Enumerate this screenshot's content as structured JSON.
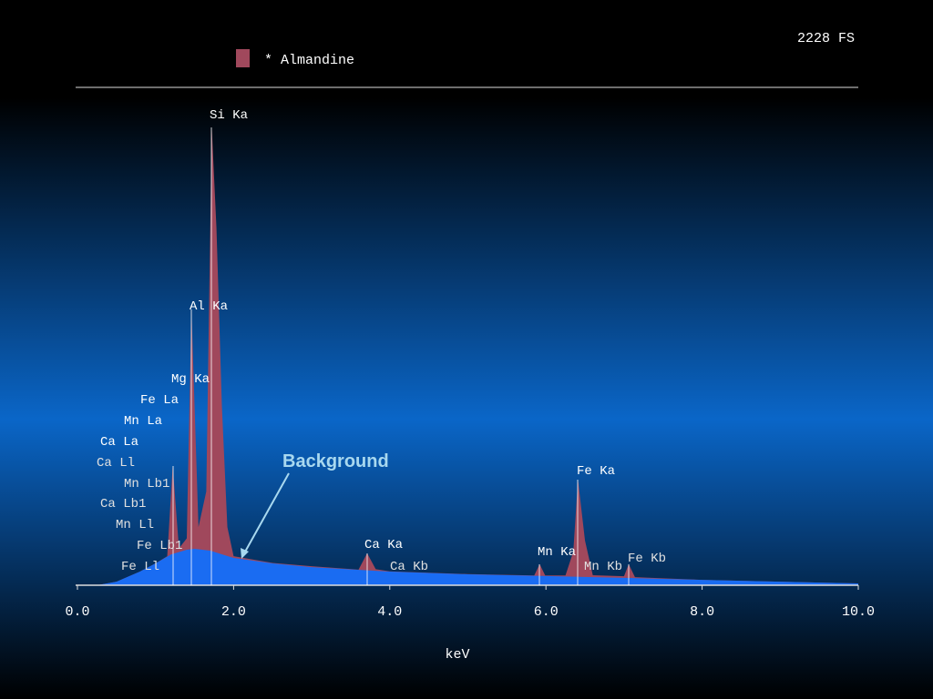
{
  "chart_data": {
    "type": "area",
    "full_scale_label": "2228 FS",
    "xlabel": "keV",
    "xlim": [
      0,
      10
    ],
    "xticks": [
      {
        "value": 0,
        "label": "0.0"
      },
      {
        "value": 2,
        "label": "2.0"
      },
      {
        "value": 4,
        "label": "4.0"
      },
      {
        "value": 6,
        "label": "6.0"
      },
      {
        "value": 8,
        "label": "8.0"
      },
      {
        "value": 10,
        "label": "10.0"
      }
    ],
    "ylim": [
      0,
      2228
    ],
    "series": [
      {
        "name": "* Almandine",
        "color": "#a0485c",
        "x": [
          0,
          0.25,
          0.5,
          0.8,
          1.0,
          1.15,
          1.22,
          1.3,
          1.4,
          1.46,
          1.55,
          1.65,
          1.72,
          1.78,
          1.85,
          1.92,
          2.0,
          2.5,
          3.0,
          3.6,
          3.71,
          3.82,
          4.0,
          5.0,
          5.85,
          5.92,
          5.99,
          6.25,
          6.35,
          6.41,
          6.5,
          6.6,
          7.0,
          7.06,
          7.14,
          8.0,
          9.0,
          10.0
        ],
        "values": [
          0,
          0,
          16,
          61,
          98,
          130,
          534,
          165,
          210,
          1234,
          260,
          420,
          2049,
          1600,
          800,
          260,
          130,
          100,
          85,
          70,
          143,
          72,
          62,
          50,
          44,
          94,
          44,
          44,
          150,
          472,
          200,
          45,
          40,
          94,
          36,
          24,
          16,
          8
        ]
      }
    ],
    "background": {
      "label": "Background",
      "color": "#1a6cf2",
      "x": [
        0.25,
        0.5,
        0.8,
        1.0,
        1.2,
        1.4,
        1.5,
        1.7,
        2.0,
        2.5,
        3.0,
        4.0,
        5.0,
        6.0,
        7.0,
        8.0,
        9.0,
        10.0
      ],
      "values": [
        0,
        16,
        61,
        98,
        138,
        159,
        163,
        155,
        122,
        98,
        81,
        61,
        49,
        41,
        33,
        24,
        16,
        8
      ]
    },
    "peak_labels": [
      "Si Ka",
      "Al Ka",
      "Mg Ka",
      "Fe La",
      "Mn La",
      "Ca La",
      "Ca Ll",
      "Mn Lb1",
      "Ca Lb1",
      "Mn Ll",
      "Fe Lb1",
      "Fe Ll",
      "Ca Ka",
      "Ca Kb",
      "Mn Ka",
      "Mn Kb",
      "Fe Ka",
      "Fe Kb"
    ]
  }
}
